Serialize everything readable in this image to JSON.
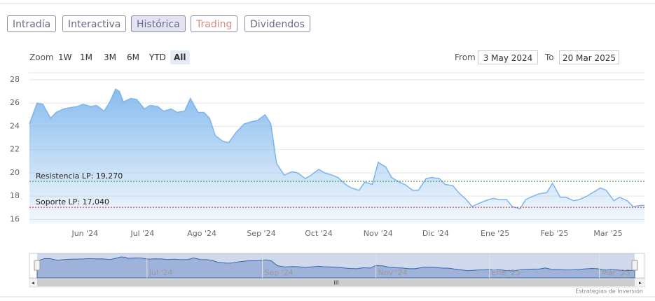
{
  "tabs": [
    "Intradía",
    "Interactiva",
    "Histórica",
    "Trading",
    "Dividendos"
  ],
  "selected_tab": "Histórica",
  "zoom_label": "Zoom",
  "zoom_buttons": [
    "1W",
    "1M",
    "3M",
    "6M",
    "YTD",
    "All"
  ],
  "selected_zoom": "All",
  "from_label": "From",
  "from": "3 May 2024",
  "to_label": "To",
  "to": "20 Mar 2025",
  "credits": "Estrategias de Inversión",
  "chart_data": {
    "type": "area",
    "color": "#7cb5ec",
    "x": [
      "2024-05-03",
      "2024-05-07",
      "2024-05-10",
      "2024-05-14",
      "2024-05-17",
      "2024-05-21",
      "2024-05-24",
      "2024-05-28",
      "2024-05-31",
      "2024-06-04",
      "2024-06-07",
      "2024-06-11",
      "2024-06-14",
      "2024-06-17",
      "2024-06-19",
      "2024-06-21",
      "2024-06-25",
      "2024-06-28",
      "2024-07-02",
      "2024-07-05",
      "2024-07-09",
      "2024-07-12",
      "2024-07-16",
      "2024-07-19",
      "2024-07-23",
      "2024-07-26",
      "2024-07-30",
      "2024-08-02",
      "2024-08-05",
      "2024-08-08",
      "2024-08-12",
      "2024-08-15",
      "2024-08-19",
      "2024-08-23",
      "2024-08-27",
      "2024-08-30",
      "2024-09-03",
      "2024-09-06",
      "2024-09-09",
      "2024-09-13",
      "2024-09-17",
      "2024-09-20",
      "2024-09-24",
      "2024-09-27",
      "2024-10-01",
      "2024-10-04",
      "2024-10-08",
      "2024-10-11",
      "2024-10-15",
      "2024-10-18",
      "2024-10-22",
      "2024-10-25",
      "2024-10-29",
      "2024-11-01",
      "2024-11-05",
      "2024-11-08",
      "2024-11-12",
      "2024-11-15",
      "2024-11-19",
      "2024-11-22",
      "2024-11-26",
      "2024-11-29",
      "2024-12-03",
      "2024-12-06",
      "2024-12-10",
      "2024-12-13",
      "2024-12-17",
      "2024-12-20",
      "2024-12-24",
      "2024-12-27",
      "2024-12-31",
      "2025-01-03",
      "2025-01-07",
      "2025-01-10",
      "2025-01-14",
      "2025-01-17",
      "2025-01-21",
      "2025-01-24",
      "2025-01-28",
      "2025-01-31",
      "2025-02-04",
      "2025-02-07",
      "2025-02-11",
      "2025-02-14",
      "2025-02-18",
      "2025-02-21",
      "2025-02-25",
      "2025-02-28",
      "2025-03-04",
      "2025-03-07",
      "2025-03-11",
      "2025-03-14",
      "2025-03-18",
      "2025-03-20"
    ],
    "values": [
      24.2,
      26.0,
      25.9,
      24.7,
      25.2,
      25.5,
      25.6,
      25.7,
      25.9,
      25.7,
      25.8,
      25.3,
      26.1,
      27.2,
      27.0,
      26.1,
      26.4,
      26.3,
      25.5,
      25.8,
      25.7,
      25.3,
      25.5,
      25.2,
      25.3,
      26.4,
      25.2,
      25.2,
      24.7,
      23.2,
      22.7,
      22.6,
      23.5,
      24.2,
      24.4,
      24.5,
      25.0,
      24.2,
      20.8,
      19.8,
      20.1,
      20.0,
      19.5,
      19.8,
      20.3,
      20.0,
      19.8,
      19.6,
      19.0,
      18.7,
      18.5,
      19.2,
      19.0,
      20.9,
      20.5,
      19.6,
      19.2,
      19.0,
      18.5,
      18.5,
      19.5,
      19.6,
      19.5,
      19.0,
      18.9,
      18.3,
      17.7,
      17.1,
      17.4,
      17.6,
      17.8,
      17.7,
      17.7,
      17.1,
      16.9,
      17.7,
      18.0,
      18.2,
      18.3,
      19.1,
      17.9,
      17.9,
      17.6,
      17.7,
      18.0,
      18.3,
      18.7,
      18.5,
      17.6,
      17.9,
      17.6,
      17.1,
      17.2,
      17.2
    ],
    "xlim": [
      "2024-05-03",
      "2025-03-20"
    ],
    "xticks": [
      {
        "value": "2024-06-01",
        "label": "Jun '24"
      },
      {
        "value": "2024-07-01",
        "label": "Jul '24"
      },
      {
        "value": "2024-08-01",
        "label": "Ago '24"
      },
      {
        "value": "2024-09-01",
        "label": "Sep '24"
      },
      {
        "value": "2024-10-01",
        "label": "Oct '24"
      },
      {
        "value": "2024-11-01",
        "label": "Nov '24"
      },
      {
        "value": "2024-12-01",
        "label": "Dic '24"
      },
      {
        "value": "2025-01-01",
        "label": "Ene '25"
      },
      {
        "value": "2025-02-01",
        "label": "Feb '25"
      },
      {
        "value": "2025-03-01",
        "label": "Mar '25"
      }
    ],
    "ylim": [
      15.6,
      28.6
    ],
    "yticks": [
      16,
      18,
      20,
      22,
      24,
      26,
      28
    ],
    "grid": true,
    "plot_lines": [
      {
        "value": 19.27,
        "label": "Resistencia LP: 19,270",
        "color": "#2e7d32"
      },
      {
        "value": 17.04,
        "label": "Soporte LP: 17,040",
        "color": "#d32f2f"
      }
    ],
    "navigator_xticks": [
      {
        "value": "2024-07-01",
        "label": "Jul '24"
      },
      {
        "value": "2024-09-01",
        "label": "Sep '24"
      },
      {
        "value": "2024-11-01",
        "label": "Nov '24"
      },
      {
        "value": "2025-01-01",
        "label": "Ene '25"
      },
      {
        "value": "2025-03-01",
        "label": "Mar '25"
      }
    ]
  }
}
